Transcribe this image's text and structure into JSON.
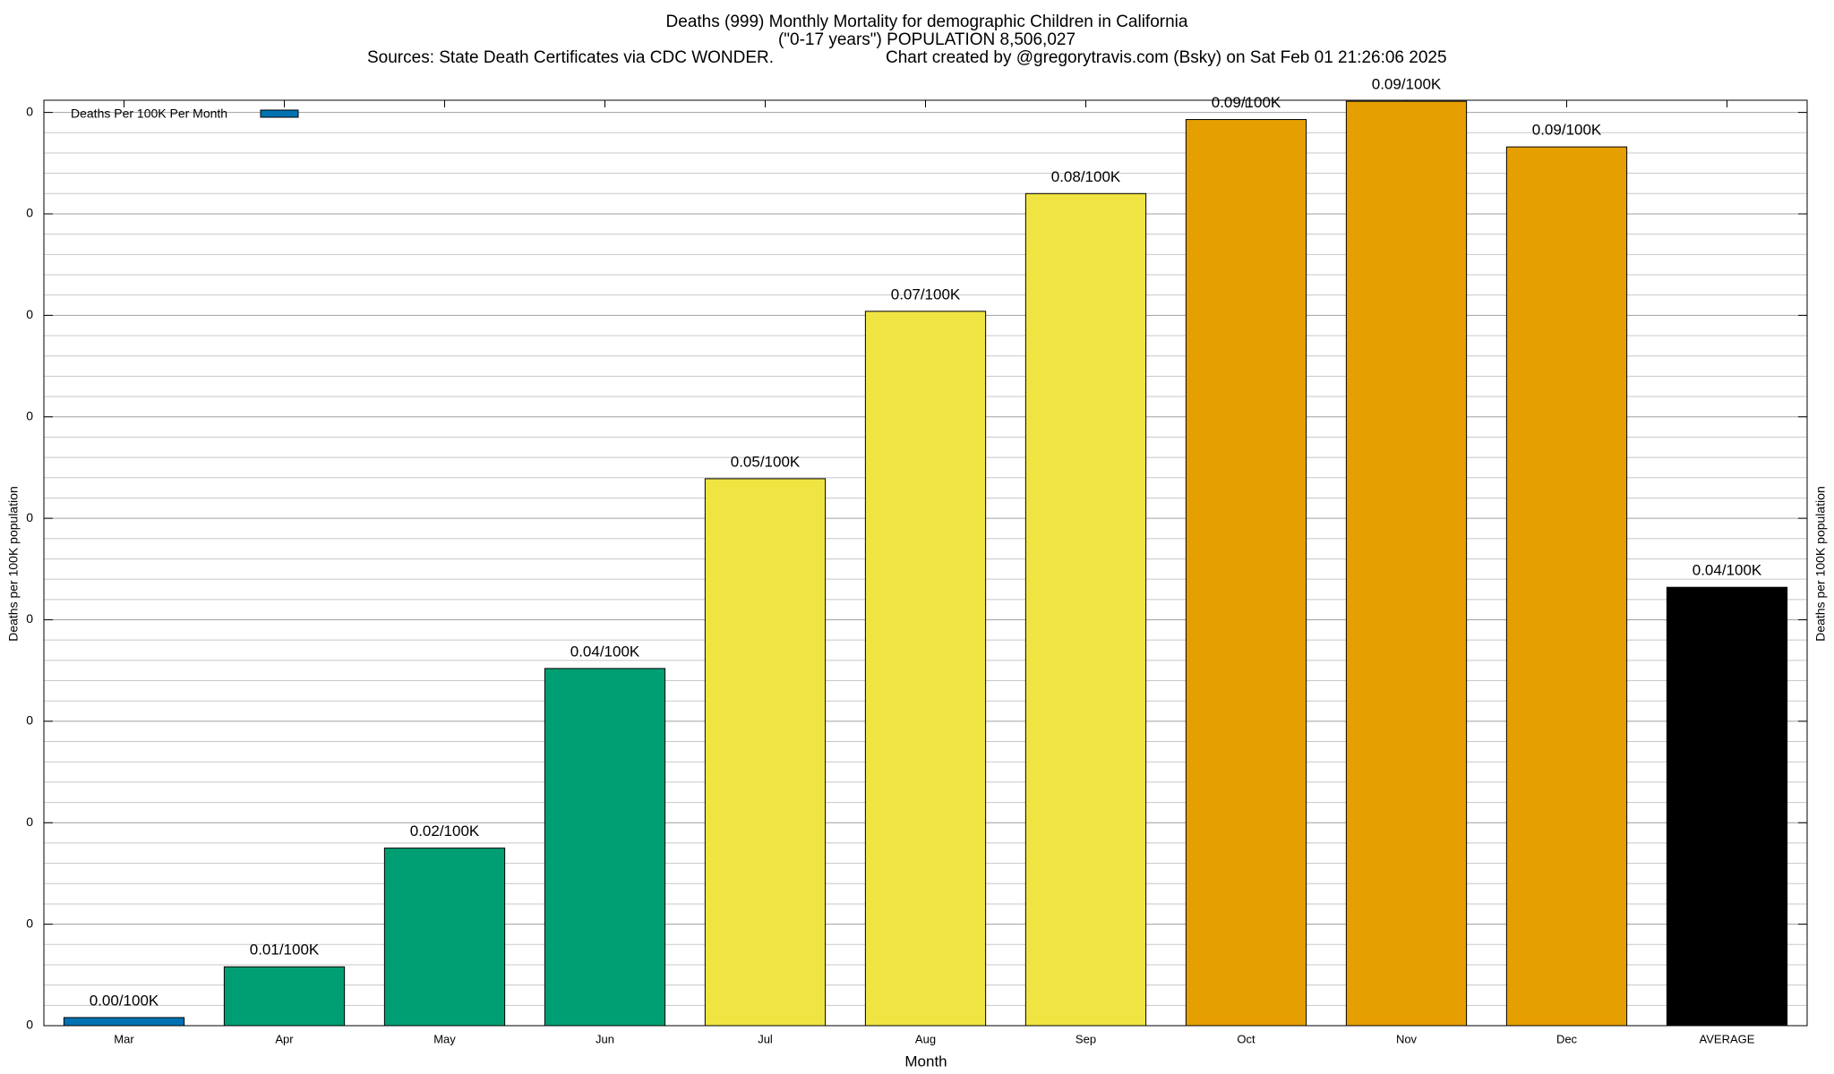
{
  "chart_data": {
    "type": "bar",
    "title": "Deaths (999) Monthly Mortality for demographic Children in California",
    "subtitle": "(\"0-17 years\") POPULATION 8,506,027",
    "sources": "Sources: State Death Certificates via CDC WONDER.",
    "credit": "Chart created by @gregorytravis.com (Bsky) on Sat Feb 01 21:26:06 2025",
    "x_label": "Month",
    "y_label": "Deaths per 100K population",
    "y2_label": "Deaths per 100K population",
    "legend_label": "Deaths Per 100K Per Month",
    "legend_color": "#0072b2",
    "legend_position": "top-left",
    "categories": [
      "Mar",
      "Apr",
      "May",
      "Jun",
      "Jul",
      "Aug",
      "Sep",
      "Oct",
      "Nov",
      "Dec",
      "AVERAGE"
    ],
    "values": [
      0.0008,
      0.0058,
      0.0175,
      0.0352,
      0.0539,
      0.0704,
      0.082,
      0.0893,
      0.0911,
      0.0866,
      0.0432
    ],
    "value_labels": [
      "0.00/100K",
      "0.01/100K",
      "0.02/100K",
      "0.04/100K",
      "0.05/100K",
      "0.07/100K",
      "0.08/100K",
      "0.09/100K",
      "0.09/100K",
      "0.09/100K",
      "0.04/100K"
    ],
    "colors": [
      "#0072b2",
      "#009e73",
      "#009e73",
      "#009e73",
      "#f0e442",
      "#f0e442",
      "#f0e442",
      "#e69f00",
      "#e69f00",
      "#e69f00",
      "#000000"
    ],
    "ylim": [
      0,
      0.0912
    ],
    "yticks": [
      0,
      {
        "value": 0.01,
        "label": "0"
      },
      {
        "value": 0.02,
        "label": "0"
      },
      {
        "value": 0.03,
        "label": "0"
      },
      {
        "value": 0.04,
        "label": "0"
      },
      {
        "value": 0.05,
        "label": "0"
      },
      {
        "value": 0.06,
        "label": "0"
      },
      {
        "value": 0.07,
        "label": "0"
      },
      {
        "value": 0.08,
        "label": "0"
      },
      {
        "value": 0.09,
        "label": "0"
      }
    ],
    "grid": true
  }
}
